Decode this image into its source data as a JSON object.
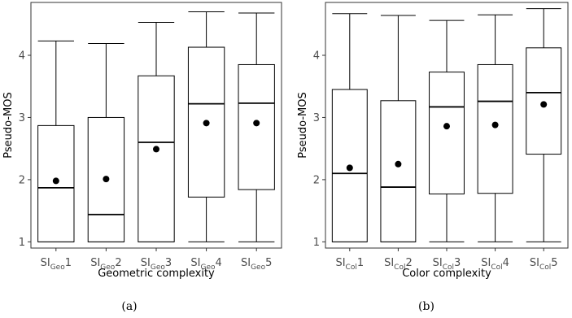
{
  "chart_data": [
    {
      "type": "box",
      "xlabel": "Geometric complexity",
      "ylabel": "Pseudo-MOS",
      "caption": "(a)",
      "ylim": [
        0.9,
        4.85
      ],
      "yticks": [
        1,
        2,
        3,
        4
      ],
      "grid": false,
      "categories": [
        {
          "base": "SI",
          "sub": "Geo",
          "num": "1"
        },
        {
          "base": "SI",
          "sub": "Geo",
          "num": "2"
        },
        {
          "base": "SI",
          "sub": "Geo",
          "num": "3"
        },
        {
          "base": "SI",
          "sub": "Geo",
          "num": "4"
        },
        {
          "base": "SI",
          "sub": "Geo",
          "num": "5"
        }
      ],
      "boxes": [
        {
          "min": 1.0,
          "q1": 1.0,
          "median": 1.87,
          "q3": 2.87,
          "max": 4.23,
          "mean": 1.98
        },
        {
          "min": 1.0,
          "q1": 1.0,
          "median": 1.44,
          "q3": 3.0,
          "max": 4.19,
          "mean": 2.01
        },
        {
          "min": 1.0,
          "q1": 1.0,
          "median": 2.6,
          "q3": 3.67,
          "max": 4.53,
          "mean": 2.49
        },
        {
          "min": 1.0,
          "q1": 1.72,
          "median": 3.22,
          "q3": 4.13,
          "max": 4.7,
          "mean": 2.91
        },
        {
          "min": 1.0,
          "q1": 1.84,
          "median": 3.23,
          "q3": 3.85,
          "max": 4.68,
          "mean": 2.91
        }
      ]
    },
    {
      "type": "box",
      "xlabel": "Color complexity",
      "ylabel": "Pseudo-MOS",
      "caption": "(b)",
      "ylim": [
        0.9,
        4.85
      ],
      "yticks": [
        1,
        2,
        3,
        4
      ],
      "grid": false,
      "categories": [
        {
          "base": "SI",
          "sub": "Col",
          "num": "1"
        },
        {
          "base": "SI",
          "sub": "Col",
          "num": "2"
        },
        {
          "base": "SI",
          "sub": "Col",
          "num": "3"
        },
        {
          "base": "SI",
          "sub": "Col",
          "num": "4"
        },
        {
          "base": "SI",
          "sub": "Col",
          "num": "5"
        }
      ],
      "boxes": [
        {
          "min": 1.0,
          "q1": 1.0,
          "median": 2.1,
          "q3": 3.45,
          "max": 4.67,
          "mean": 2.19
        },
        {
          "min": 1.0,
          "q1": 1.0,
          "median": 1.88,
          "q3": 3.27,
          "max": 4.64,
          "mean": 2.25
        },
        {
          "min": 1.0,
          "q1": 1.77,
          "median": 3.17,
          "q3": 3.73,
          "max": 4.56,
          "mean": 2.86
        },
        {
          "min": 1.0,
          "q1": 1.78,
          "median": 3.26,
          "q3": 3.85,
          "max": 4.65,
          "mean": 2.88
        },
        {
          "min": 1.0,
          "q1": 2.41,
          "median": 3.4,
          "q3": 4.12,
          "max": 4.75,
          "mean": 3.21
        }
      ]
    }
  ]
}
